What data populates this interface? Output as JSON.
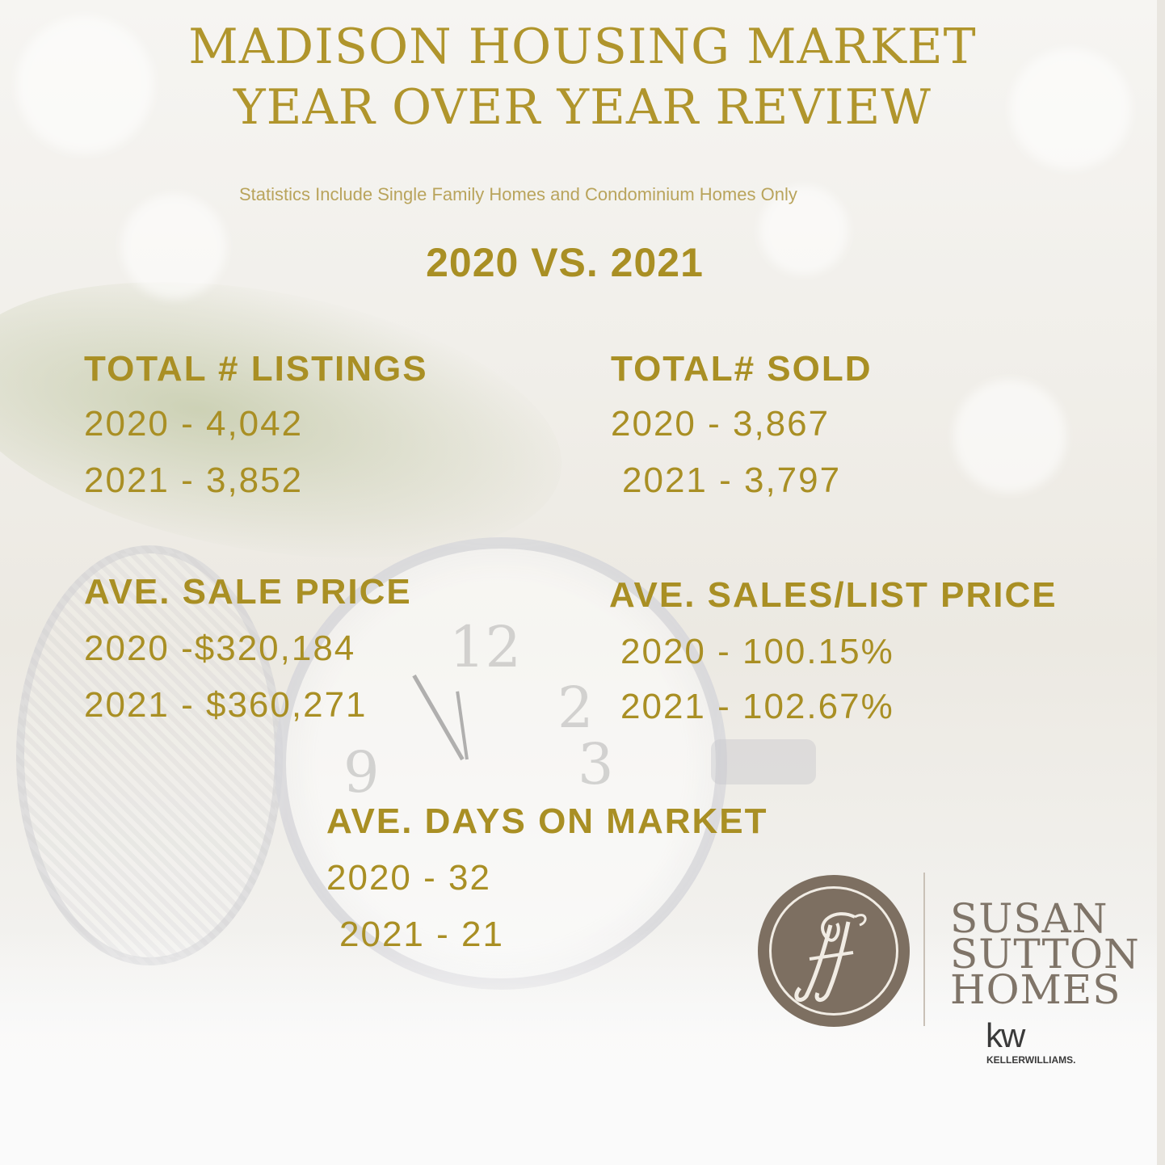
{
  "header": {
    "title_line1": "MADISON HOUSING MARKET",
    "title_line2": "YEAR OVER YEAR REVIEW",
    "subtitle": "Statistics Include Single Family Homes and Condominium Homes Only",
    "comparison": "2020  VS. 2021"
  },
  "stats": {
    "listings": {
      "title": "TOTAL # LISTINGS",
      "line_2020": "2020 - 4,042",
      "line_2021": "2021 - 3,852"
    },
    "sold": {
      "title": "TOTAL# SOLD",
      "line_2020": "2020 - 3,867",
      "line_2021": "2021 - 3,797"
    },
    "sale_price": {
      "title": "AVE. SALE PRICE",
      "line_2020": "2020 -$320,184",
      "line_2021": "2021 - $360,271"
    },
    "sales_list": {
      "title": "AVE. SALES/LIST PRICE",
      "line_2020": "2020 - 100.15%",
      "line_2021": "2021 - 102.67%"
    },
    "days": {
      "title": "AVE. DAYS ON MARKET",
      "line_2020": "2020 - 32",
      "line_2021": "2021 - 21"
    }
  },
  "brand": {
    "line1": "SUSAN",
    "line2": "SUTTON",
    "line3": "HOMES",
    "kw_mark": "kw",
    "kw_name": "KELLERWILLIAMS."
  },
  "colors": {
    "gold": "#a98f24",
    "logo_brown": "#7d6f61",
    "brand_text": "#7f7468"
  }
}
